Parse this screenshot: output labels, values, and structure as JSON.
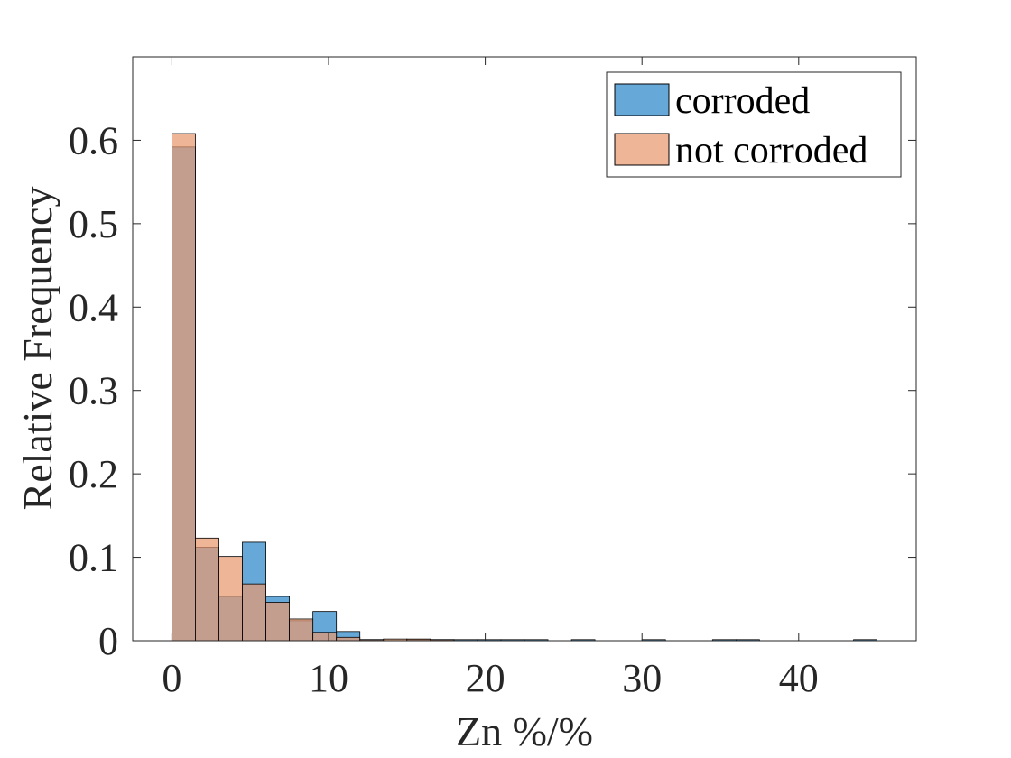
{
  "chart_data": {
    "type": "bar",
    "xlabel": "Zn %/%",
    "ylabel": "Relative Frequency",
    "xlim": [
      -2.5,
      47.5
    ],
    "ylim": [
      0,
      0.7
    ],
    "xticks": [
      "0",
      "10",
      "20",
      "30",
      "40"
    ],
    "xtick_values": [
      0,
      10,
      20,
      30,
      40
    ],
    "yticks": [
      "0",
      "0.1",
      "0.2",
      "0.3",
      "0.4",
      "0.5",
      "0.6"
    ],
    "ytick_values": [
      0,
      0.1,
      0.2,
      0.3,
      0.4,
      0.5,
      0.6
    ],
    "legend_position": "top-right",
    "grid": false,
    "series": [
      {
        "name": "corroded",
        "color": "#0072BD",
        "fill": "#66A9D9",
        "bins": [
          {
            "x0": 0.0,
            "x1": 1.5,
            "value": 0.592
          },
          {
            "x0": 1.5,
            "x1": 3.0,
            "value": 0.112
          },
          {
            "x0": 3.0,
            "x1": 4.5,
            "value": 0.053
          },
          {
            "x0": 4.5,
            "x1": 6.0,
            "value": 0.118
          },
          {
            "x0": 6.0,
            "x1": 7.5,
            "value": 0.053
          },
          {
            "x0": 7.5,
            "x1": 9.0,
            "value": 0.024
          },
          {
            "x0": 9.0,
            "x1": 10.5,
            "value": 0.035
          },
          {
            "x0": 10.5,
            "x1": 12.0,
            "value": 0.011
          },
          {
            "x0": 12.0,
            "x1": 13.5,
            "value": 0.001
          },
          {
            "x0": 15.0,
            "x1": 16.5,
            "value": 0.001
          },
          {
            "x0": 16.5,
            "x1": 18.0,
            "value": 0.0008
          },
          {
            "x0": 18.0,
            "x1": 19.5,
            "value": 0.0008
          },
          {
            "x0": 19.5,
            "x1": 21.0,
            "value": 0.0008
          },
          {
            "x0": 21.0,
            "x1": 22.5,
            "value": 0.0008
          },
          {
            "x0": 22.5,
            "x1": 24.0,
            "value": 0.0008
          },
          {
            "x0": 25.5,
            "x1": 27.0,
            "value": 0.0008
          },
          {
            "x0": 30.0,
            "x1": 31.5,
            "value": 0.0008
          },
          {
            "x0": 34.5,
            "x1": 36.0,
            "value": 0.0008
          },
          {
            "x0": 36.0,
            "x1": 37.5,
            "value": 0.0008
          },
          {
            "x0": 43.5,
            "x1": 45.0,
            "value": 0.0008
          }
        ]
      },
      {
        "name": "not corroded",
        "color": "#D95319",
        "fill": "#E8986F",
        "bins": [
          {
            "x0": 0.0,
            "x1": 1.5,
            "value": 0.608
          },
          {
            "x0": 1.5,
            "x1": 3.0,
            "value": 0.123
          },
          {
            "x0": 3.0,
            "x1": 4.5,
            "value": 0.101
          },
          {
            "x0": 4.5,
            "x1": 6.0,
            "value": 0.068
          },
          {
            "x0": 6.0,
            "x1": 7.5,
            "value": 0.046
          },
          {
            "x0": 7.5,
            "x1": 9.0,
            "value": 0.026
          },
          {
            "x0": 9.0,
            "x1": 10.5,
            "value": 0.01
          },
          {
            "x0": 10.5,
            "x1": 12.0,
            "value": 0.004
          },
          {
            "x0": 12.0,
            "x1": 13.5,
            "value": 0.001
          },
          {
            "x0": 13.5,
            "x1": 15.0,
            "value": 0.002
          },
          {
            "x0": 15.0,
            "x1": 16.5,
            "value": 0.002
          },
          {
            "x0": 16.5,
            "x1": 18.0,
            "value": 0.001
          }
        ]
      }
    ]
  }
}
